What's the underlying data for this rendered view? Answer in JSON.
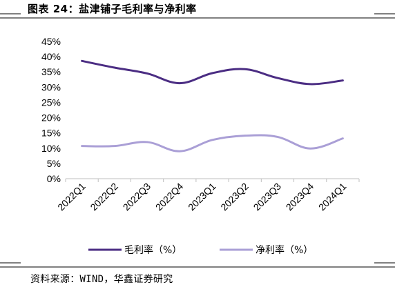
{
  "chart_data": {
    "type": "line",
    "title": "图表 24：盐津铺子毛利率与净利率",
    "categories": [
      "2022Q1",
      "2022Q2",
      "2022Q3",
      "2022Q4",
      "2023Q1",
      "2023Q2",
      "2023Q3",
      "2023Q4",
      "2024Q1"
    ],
    "y_tick_labels": [
      "0%",
      "5%",
      "10%",
      "15%",
      "20%",
      "25%",
      "30%",
      "35%",
      "40%",
      "45%"
    ],
    "ylim": [
      0,
      45
    ],
    "ylabel": "",
    "xlabel": "",
    "grid": false,
    "legend_position": "bottom",
    "series": [
      {
        "name": "毛利率（%）",
        "color": "#4b2d83",
        "values": [
          38.6,
          36.4,
          34.5,
          31.3,
          34.6,
          35.9,
          33.0,
          31.0,
          32.2
        ]
      },
      {
        "name": "净利率（%）",
        "color": "#aa9fd6",
        "values": [
          10.7,
          10.7,
          12.0,
          9.0,
          12.7,
          14.1,
          13.7,
          9.9,
          13.2
        ]
      }
    ]
  },
  "source": "资料来源：WIND，华鑫证券研究"
}
